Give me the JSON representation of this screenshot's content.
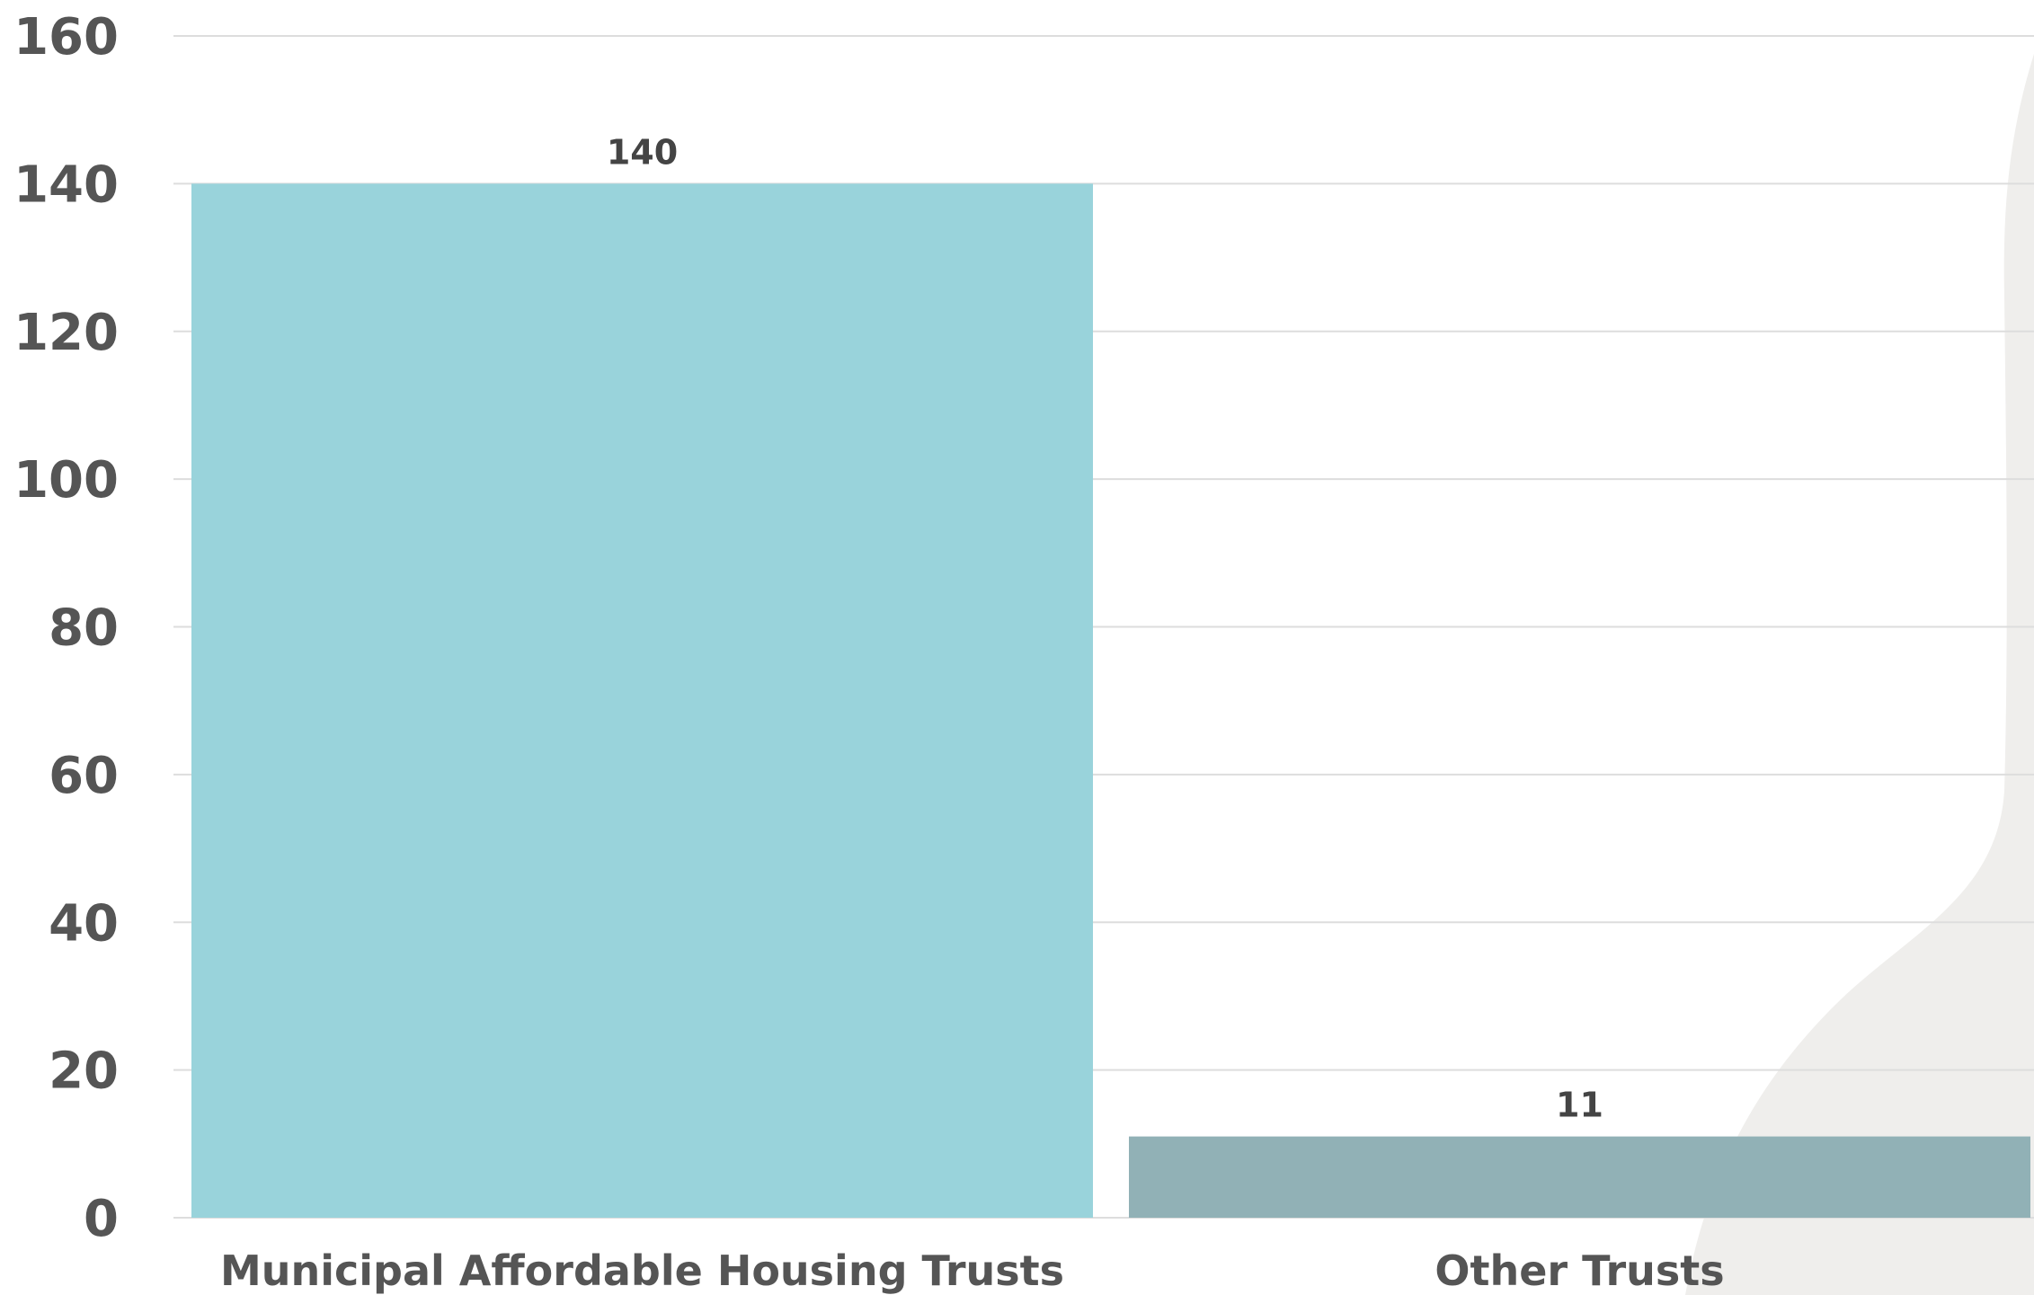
{
  "chart_data": {
    "type": "bar",
    "title": "",
    "xlabel": "",
    "ylabel": "",
    "categories": [
      "Municipal Affordable Housing Trusts",
      "Other Trusts"
    ],
    "values": [
      140,
      11
    ],
    "data_labels": [
      "140",
      "11"
    ],
    "ylim": [
      0,
      160
    ],
    "yticks": [
      0,
      20,
      40,
      60,
      80,
      100,
      120,
      140,
      160
    ],
    "ytick_labels": [
      "0",
      "20",
      "40",
      "60",
      "80",
      "100",
      "120",
      "140",
      "160"
    ],
    "grid": true,
    "legend": "none",
    "colors": [
      "#99d3db",
      "#91b1b6"
    ],
    "background_shape_color": "#efeeec"
  }
}
